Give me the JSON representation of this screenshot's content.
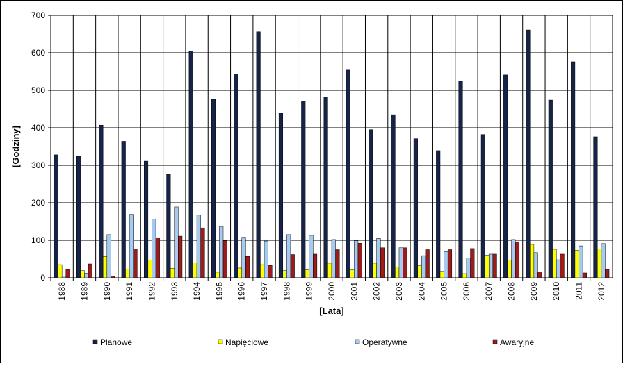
{
  "chart_data": {
    "type": "bar",
    "title": "",
    "xlabel": "[Lata]",
    "ylabel": "[Godziny]",
    "ylim": [
      0,
      700
    ],
    "yticks": [
      0,
      100,
      200,
      300,
      400,
      500,
      600,
      700
    ],
    "grid": true,
    "legend_position": "bottom",
    "categories": [
      "1988",
      "1989",
      "1990",
      "1991",
      "1992",
      "1993",
      "1994",
      "1995",
      "1996",
      "1997",
      "1998",
      "1999",
      "2000",
      "2001",
      "2002",
      "2003",
      "2004",
      "2005",
      "2006",
      "2007",
      "2008",
      "2009",
      "2010",
      "2011",
      "2012"
    ],
    "series": [
      {
        "name": "Planowe",
        "color": "#17244a",
        "values": [
          328,
          324,
          407,
          364,
          311,
          276,
          605,
          476,
          543,
          656,
          439,
          471,
          482,
          554,
          395,
          435,
          371,
          339,
          524,
          382,
          541,
          661,
          474,
          576,
          376
        ]
      },
      {
        "name": "Napięciowe",
        "color": "#ffff00",
        "values": [
          35,
          19,
          57,
          23,
          47,
          25,
          40,
          15,
          26,
          35,
          19,
          21,
          39,
          21,
          39,
          29,
          32,
          17,
          11,
          60,
          47,
          89,
          76,
          73,
          77
        ]
      },
      {
        "name": "Operatywne",
        "color": "#a6caf0",
        "values": [
          5,
          12,
          115,
          169,
          156,
          189,
          167,
          137,
          108,
          98,
          115,
          113,
          102,
          99,
          105,
          80,
          59,
          70,
          53,
          63,
          102,
          67,
          48,
          85,
          91
        ]
      },
      {
        "name": "Awaryjne",
        "color": "#9c1c1c",
        "values": [
          22,
          37,
          5,
          77,
          107,
          111,
          133,
          99,
          57,
          33,
          62,
          63,
          75,
          92,
          80,
          80,
          75,
          75,
          78,
          63,
          95,
          16,
          63,
          13,
          22
        ]
      }
    ]
  }
}
